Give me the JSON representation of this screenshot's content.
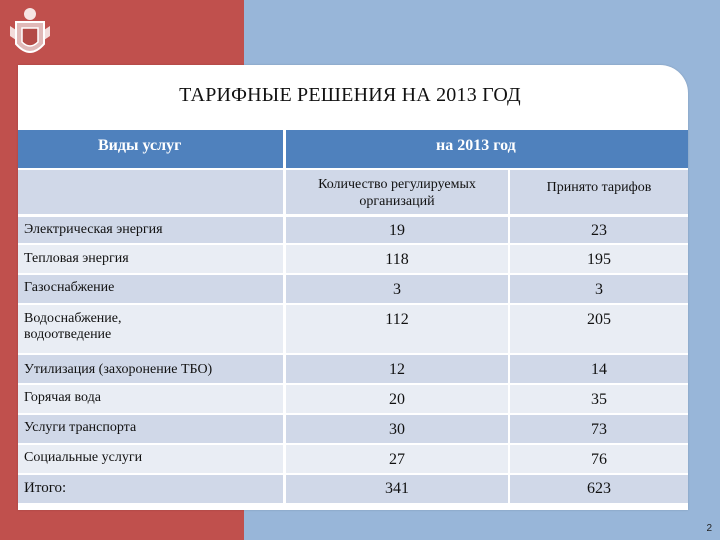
{
  "title": "ТАРИФНЫЕ РЕШЕНИЯ НА 2013 ГОД",
  "header": {
    "col1": "Виды услуг",
    "col2": "на 2013 год"
  },
  "subheader": {
    "col2": "Количество регулируемых организаций",
    "col3": "Принято тарифов"
  },
  "rows": [
    {
      "label": "Электрическая энергия",
      "orgs": "19",
      "tariffs": "23"
    },
    {
      "label": "Тепловая энергия",
      "orgs": "118",
      "tariffs": "195"
    },
    {
      "label": "Газоснабжение",
      "orgs": "3",
      "tariffs": "3"
    },
    {
      "label": "Водоснабжение, водоотведение",
      "orgs": "112",
      "tariffs": "205"
    },
    {
      "label": "Утилизация (захоронение ТБО)",
      "orgs": "12",
      "tariffs": "14"
    },
    {
      "label": "Горячая вода",
      "orgs": "20",
      "tariffs": "35"
    },
    {
      "label": "Услуги транспорта",
      "orgs": "30",
      "tariffs": "73"
    },
    {
      "label": "Социальные услуги",
      "orgs": "27",
      "tariffs": "76"
    },
    {
      "label": "Итого:",
      "orgs": "341",
      "tariffs": "623"
    }
  ],
  "page_number": "2",
  "colors": {
    "header": "#4f81bd",
    "row_shade": "#d0d8e8",
    "row_plain": "#e9edf4",
    "left_band": "#c0504d",
    "background": "#98b6d9"
  },
  "emblem": "coat-of-arms"
}
